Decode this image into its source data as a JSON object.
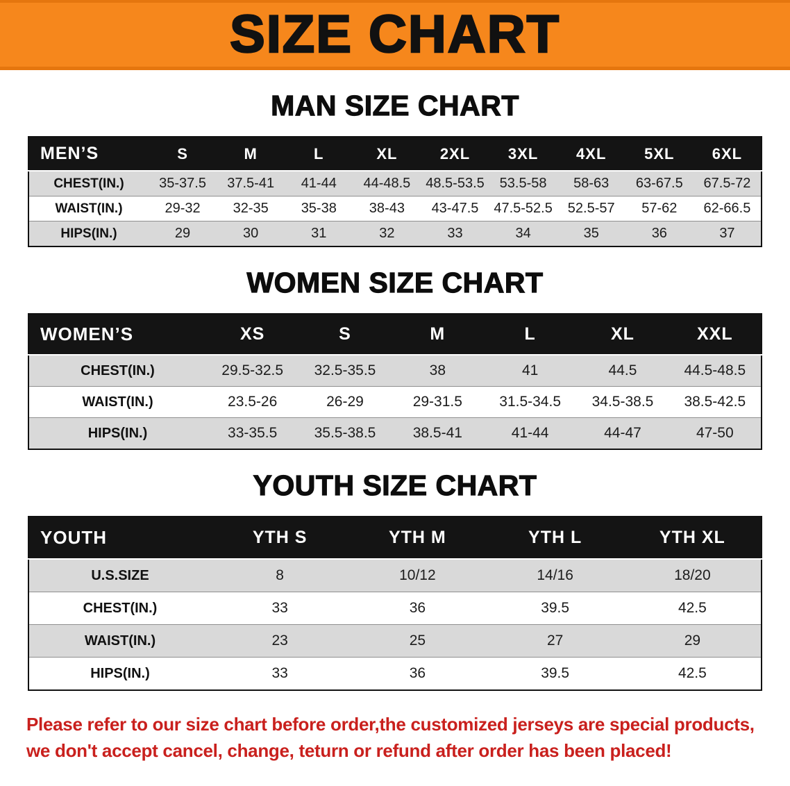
{
  "banner": {
    "title": "SIZE CHART",
    "bg_color": "#f6871c"
  },
  "colors": {
    "accent_orange": "#f6871c",
    "table_header_black": "#141414",
    "stripe_gray": "#d9d9d9",
    "footer_red": "#c9201d"
  },
  "sections": {
    "men": {
      "heading": "MAN SIZE CHART",
      "table": {
        "header": [
          "MEN’S",
          "S",
          "M",
          "L",
          "XL",
          "2XL",
          "3XL",
          "4XL",
          "5XL",
          "6XL"
        ],
        "rows": [
          {
            "label": "CHEST(IN.)",
            "values": [
              "35-37.5",
              "37.5-41",
              "41-44",
              "44-48.5",
              "48.5-53.5",
              "53.5-58",
              "58-63",
              "63-67.5",
              "67.5-72"
            ]
          },
          {
            "label": "WAIST(IN.)",
            "values": [
              "29-32",
              "32-35",
              "35-38",
              "38-43",
              "43-47.5",
              "47.5-52.5",
              "52.5-57",
              "57-62",
              "62-66.5"
            ]
          },
          {
            "label": "HIPS(IN.)",
            "values": [
              "29",
              "30",
              "31",
              "32",
              "33",
              "34",
              "35",
              "36",
              "37"
            ]
          }
        ]
      }
    },
    "women": {
      "heading": "WOMEN SIZE CHART",
      "table": {
        "header": [
          "WOMEN’S",
          "XS",
          "S",
          "M",
          "L",
          "XL",
          "XXL"
        ],
        "rows": [
          {
            "label": "CHEST(IN.)",
            "values": [
              "29.5-32.5",
              "32.5-35.5",
              "38",
              "41",
              "44.5",
              "44.5-48.5"
            ]
          },
          {
            "label": "WAIST(IN.)",
            "values": [
              "23.5-26",
              "26-29",
              "29-31.5",
              "31.5-34.5",
              "34.5-38.5",
              "38.5-42.5"
            ]
          },
          {
            "label": "HIPS(IN.)",
            "values": [
              "33-35.5",
              "35.5-38.5",
              "38.5-41",
              "41-44",
              "44-47",
              "47-50"
            ]
          }
        ]
      }
    },
    "youth": {
      "heading": "YOUTH SIZE CHART",
      "table": {
        "header": [
          "YOUTH",
          "YTH S",
          "YTH M",
          "YTH L",
          "YTH XL"
        ],
        "rows": [
          {
            "label": "U.S.SIZE",
            "values": [
              "8",
              "10/12",
              "14/16",
              "18/20"
            ]
          },
          {
            "label": "CHEST(IN.)",
            "values": [
              "33",
              "36",
              "39.5",
              "42.5"
            ]
          },
          {
            "label": "WAIST(IN.)",
            "values": [
              "23",
              "25",
              "27",
              "29"
            ]
          },
          {
            "label": "HIPS(IN.)",
            "values": [
              "33",
              "36",
              "39.5",
              "42.5"
            ]
          }
        ]
      }
    }
  },
  "footer": {
    "line1": "Please refer to our size chart before order,the customized jerseys are special products,",
    "line2": "we don't accept cancel, change, teturn or refund after order has been placed!"
  }
}
